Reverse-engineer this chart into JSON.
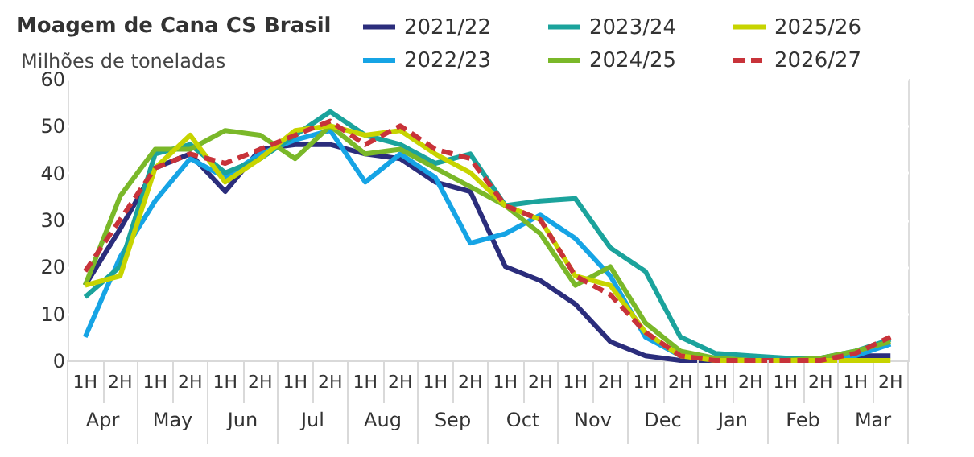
{
  "chart_data": {
    "type": "line",
    "title": "Moagem de Cana CS Brasil",
    "subtitle": "Milhões de toneladas",
    "categories": [
      "1H",
      "2H",
      "1H",
      "2H",
      "1H",
      "2H",
      "1H",
      "2H",
      "1H",
      "2H",
      "1H",
      "2H",
      "1H",
      "2H",
      "1H",
      "2H",
      "1H",
      "2H",
      "1H",
      "2H",
      "1H",
      "2H",
      "1H",
      "2H"
    ],
    "annotations": [
      "Apr",
      "May",
      "Jun",
      "Jul",
      "Aug",
      "Sep",
      "Oct",
      "Nov",
      "Dec",
      "Jan",
      "Feb",
      "Mar"
    ],
    "ylim": [
      0,
      60
    ],
    "yticks": [
      0,
      10,
      20,
      30,
      40,
      50,
      60
    ],
    "grid": "y",
    "legend": "top right",
    "line_style": "solid",
    "marker": "none",
    "series": [
      {
        "name": "2021/22",
        "color": "#2b2d7c",
        "values": [
          16,
          28,
          41,
          44,
          36,
          45,
          46,
          46,
          44,
          43,
          38,
          36,
          20,
          17,
          12,
          4,
          1,
          0,
          0,
          0,
          0,
          0,
          1,
          1
        ]
      },
      {
        "name": "2022/23",
        "color": "#16a4e5",
        "values": [
          5,
          22,
          34,
          43,
          39,
          44,
          47,
          49,
          38,
          44,
          39,
          25,
          27,
          31,
          26,
          18,
          5,
          1,
          0.5,
          0,
          0,
          0,
          1,
          3.5
        ]
      },
      {
        "name": "2023/24",
        "color": "#1ba39c",
        "values": [
          13.5,
          20,
          44,
          46,
          40,
          43,
          48,
          53,
          48,
          46,
          42,
          44,
          33,
          34,
          34.5,
          24,
          19,
          5,
          1.5,
          1,
          0.5,
          0.5,
          2,
          4.5
        ]
      },
      {
        "name": "2024/25",
        "color": "#7ab829",
        "values": [
          16,
          35,
          45,
          45,
          49,
          48,
          43,
          50,
          44,
          45,
          41,
          37,
          33,
          27,
          16,
          20,
          8,
          2,
          0.5,
          0,
          0,
          0.5,
          2,
          4
        ]
      },
      {
        "name": "2025/26",
        "color": "#c7d400",
        "values": [
          16,
          18,
          41,
          48,
          38,
          43,
          49,
          50,
          48,
          49,
          44,
          40,
          33,
          30,
          18,
          16,
          6,
          1,
          0,
          0,
          0,
          0,
          0,
          0
        ]
      },
      {
        "name": "2026/27",
        "color": "#c8333a",
        "line_style": "dashed",
        "values": [
          19,
          30,
          41,
          44,
          42,
          45,
          48,
          51,
          46,
          50,
          45,
          43,
          33,
          30,
          18,
          14,
          6,
          1,
          0,
          0,
          0,
          0,
          1.5,
          5
        ]
      }
    ]
  }
}
